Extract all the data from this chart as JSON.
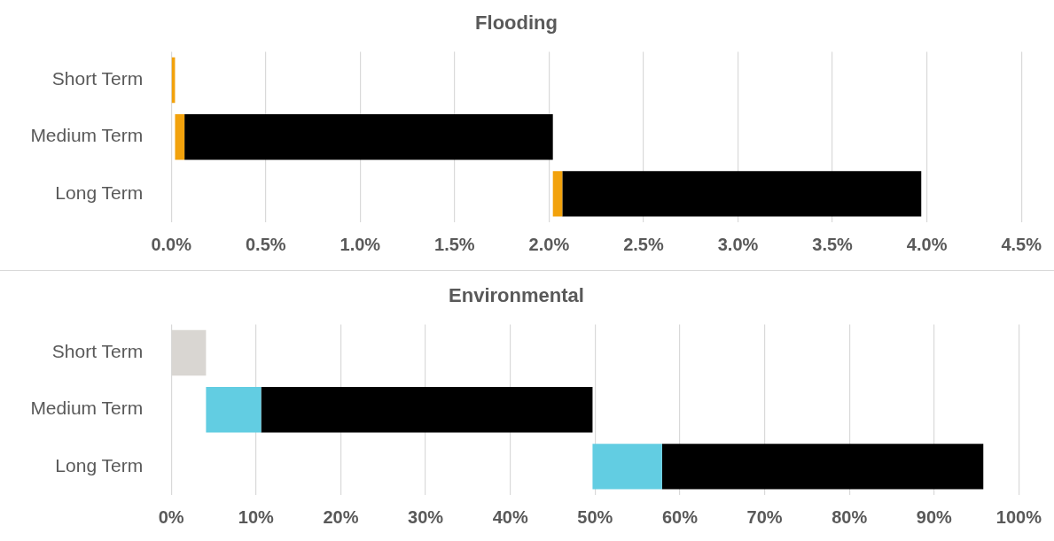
{
  "chart_data": [
    {
      "type": "bar",
      "title": "Flooding",
      "orientation": "horizontal",
      "categories": [
        "Short Term",
        "Medium Term",
        "Long Term"
      ],
      "series": [
        {
          "color": "#f2a20c",
          "base": [
            0,
            0.02,
            2.02
          ],
          "values": [
            0.02,
            0.05,
            0.05
          ]
        },
        {
          "color": "#000000",
          "base": [
            null,
            0.07,
            2.07
          ],
          "values": [
            null,
            1.95,
            1.9
          ]
        }
      ],
      "xlim": [
        0,
        4.5
      ],
      "xticks": [
        {
          "value": 0,
          "label": "0.0%"
        },
        {
          "value": 0.5,
          "label": "0.5%"
        },
        {
          "value": 1,
          "label": "1.0%"
        },
        {
          "value": 1.5,
          "label": "1.5%"
        },
        {
          "value": 2,
          "label": "2.0%"
        },
        {
          "value": 2.5,
          "label": "2.5%"
        },
        {
          "value": 3,
          "label": "3.0%"
        },
        {
          "value": 3.5,
          "label": "3.5%"
        },
        {
          "value": 4,
          "label": "4.0%"
        },
        {
          "value": 4.5,
          "label": "4.5%"
        }
      ],
      "grid": "x",
      "legend": false
    },
    {
      "type": "bar",
      "title": "Environmental",
      "orientation": "horizontal",
      "categories": [
        "Short Term",
        "Medium Term",
        "Long Term"
      ],
      "series": [
        {
          "colors": [
            "#d9d6d2",
            "#62cde2",
            "#62cde2"
          ],
          "base": [
            0,
            4.1,
            49.7
          ],
          "values": [
            4.1,
            6.5,
            8.2
          ]
        },
        {
          "color": "#000000",
          "base": [
            null,
            10.6,
            57.9
          ],
          "values": [
            null,
            39.1,
            37.9
          ]
        }
      ],
      "xlim": [
        0,
        100
      ],
      "xticks": [
        {
          "value": 0,
          "label": "0%"
        },
        {
          "value": 10,
          "label": "10%"
        },
        {
          "value": 20,
          "label": "20%"
        },
        {
          "value": 30,
          "label": "30%"
        },
        {
          "value": 40,
          "label": "40%"
        },
        {
          "value": 50,
          "label": "50%"
        },
        {
          "value": 60,
          "label": "60%"
        },
        {
          "value": 70,
          "label": "70%"
        },
        {
          "value": 80,
          "label": "80%"
        },
        {
          "value": 90,
          "label": "90%"
        },
        {
          "value": 100,
          "label": "100%"
        }
      ],
      "grid": "x",
      "legend": false
    }
  ]
}
